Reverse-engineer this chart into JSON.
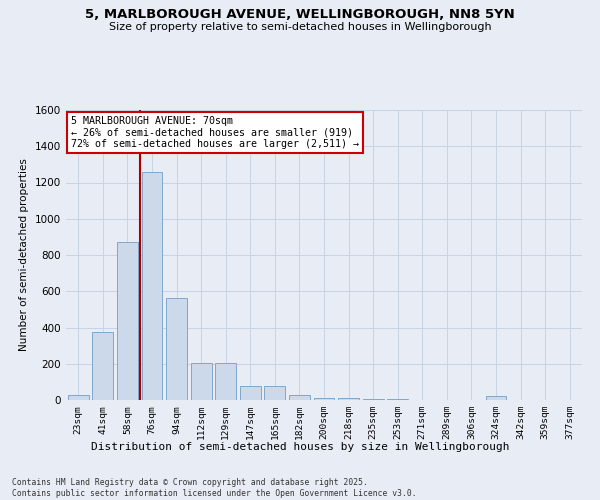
{
  "title": "5, MARLBOROUGH AVENUE, WELLINGBOROUGH, NN8 5YN",
  "subtitle": "Size of property relative to semi-detached houses in Wellingborough",
  "xlabel": "Distribution of semi-detached houses by size in Wellingborough",
  "ylabel": "Number of semi-detached properties",
  "categories": [
    "23sqm",
    "41sqm",
    "58sqm",
    "76sqm",
    "94sqm",
    "112sqm",
    "129sqm",
    "147sqm",
    "165sqm",
    "182sqm",
    "200sqm",
    "218sqm",
    "235sqm",
    "253sqm",
    "271sqm",
    "289sqm",
    "306sqm",
    "324sqm",
    "342sqm",
    "359sqm",
    "377sqm"
  ],
  "values": [
    30,
    375,
    870,
    1260,
    565,
    205,
    205,
    75,
    75,
    30,
    10,
    10,
    8,
    5,
    2,
    2,
    2,
    20,
    2,
    2,
    2
  ],
  "bar_color": "#ccd9ea",
  "bar_edge_color": "#7fa8cc",
  "vline_x": 2.5,
  "vline_color": "#aa0000",
  "property_label": "5 MARLBOROUGH AVENUE: 70sqm",
  "smaller_pct": "26%",
  "smaller_count": "919",
  "larger_pct": "72%",
  "larger_count": "2,511",
  "annotation_box_color": "#ffffff",
  "annotation_box_edge": "#cc0000",
  "ylim": [
    0,
    1600
  ],
  "yticks": [
    0,
    200,
    400,
    600,
    800,
    1000,
    1200,
    1400,
    1600
  ],
  "grid_color": "#c8d4e4",
  "bg_color": "#e8edf5",
  "title_fontsize": 9.5,
  "subtitle_fontsize": 8,
  "footnote1": "Contains HM Land Registry data © Crown copyright and database right 2025.",
  "footnote2": "Contains public sector information licensed under the Open Government Licence v3.0."
}
